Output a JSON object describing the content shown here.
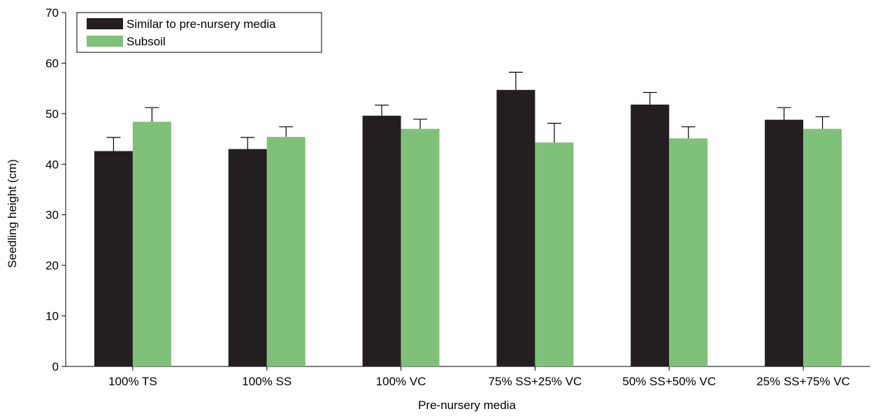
{
  "chart_data": {
    "type": "bar",
    "title": "",
    "xlabel": "Pre-nursery media",
    "ylabel": "Seedling height (cm)",
    "ylim": [
      0,
      70
    ],
    "yticks": [
      0,
      10,
      20,
      30,
      40,
      50,
      60,
      70
    ],
    "categories": [
      "100% TS",
      "100% SS",
      "100% VC",
      "75% SS+25% VC",
      "50% SS+50% VC",
      "25% SS+75% VC"
    ],
    "series": [
      {
        "name": "Similar to pre-nursery media",
        "color": "#231f20",
        "values": [
          42.6,
          43.0,
          49.6,
          54.7,
          51.8,
          48.8
        ],
        "errors": [
          2.7,
          2.3,
          2.1,
          3.5,
          2.4,
          2.4
        ]
      },
      {
        "name": "Subsoil",
        "color": "#7fc178",
        "values": [
          48.4,
          45.4,
          47.0,
          44.3,
          45.1,
          47.0
        ],
        "errors": [
          2.8,
          2.0,
          1.9,
          3.8,
          2.3,
          2.4
        ]
      }
    ],
    "legend_position": "top-left",
    "grid": false
  }
}
